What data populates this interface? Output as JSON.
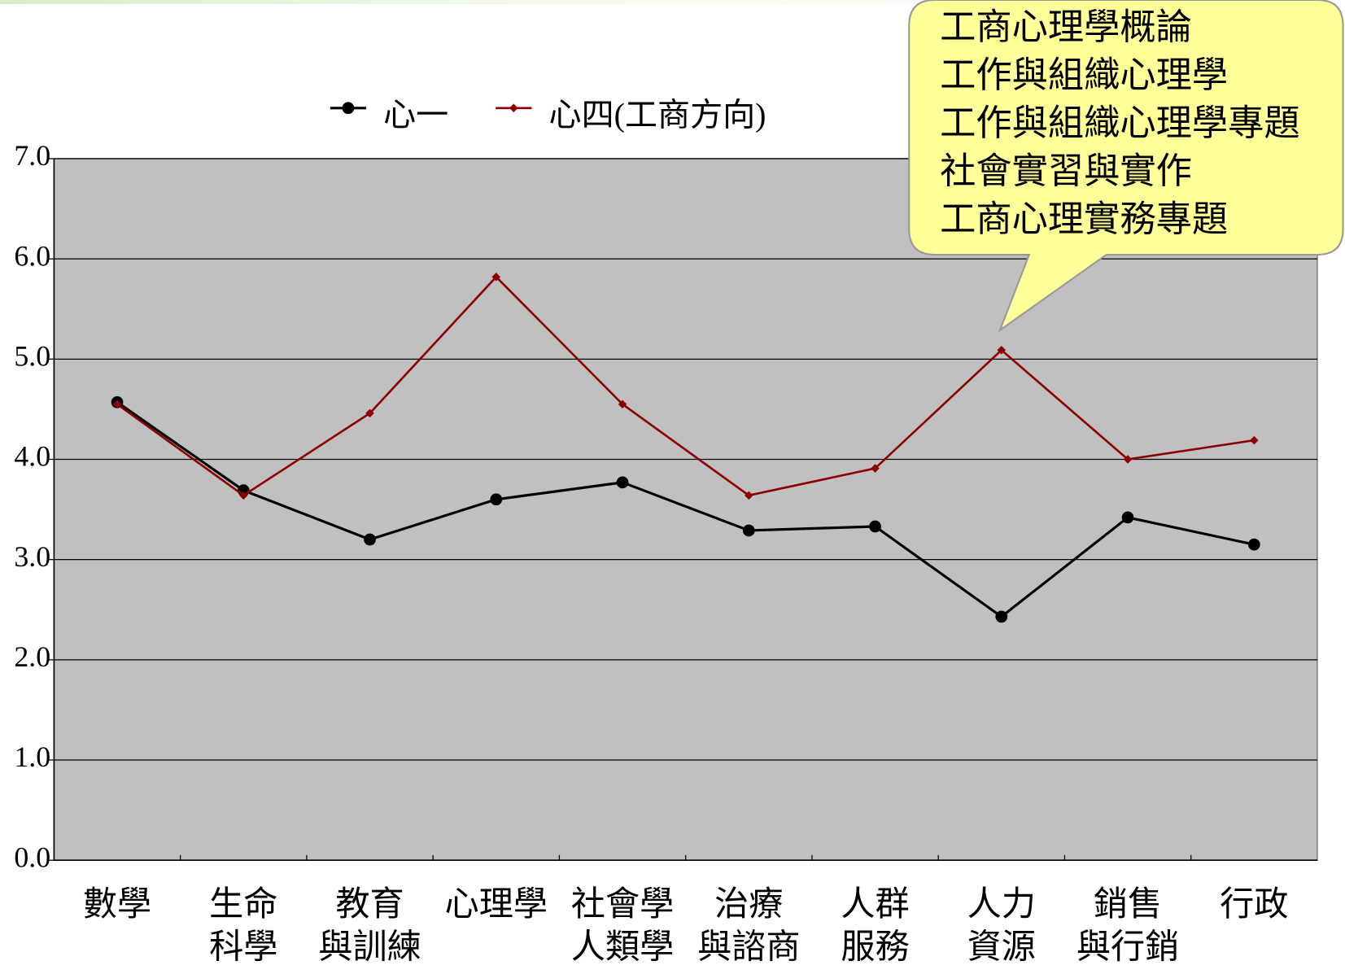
{
  "chart_data": {
    "type": "line",
    "categories": [
      [
        "數學"
      ],
      [
        "生命",
        "科學"
      ],
      [
        "教育",
        "與訓練"
      ],
      [
        "心理學"
      ],
      [
        "社會學",
        "人類學"
      ],
      [
        "治療",
        "與諮商"
      ],
      [
        "人群",
        "服務"
      ],
      [
        "人力",
        "資源"
      ],
      [
        "銷售",
        "與行銷"
      ],
      [
        "行政"
      ]
    ],
    "series": [
      {
        "name": "心一",
        "color": "#000000",
        "values": [
          4.57,
          3.69,
          3.2,
          3.6,
          3.77,
          3.29,
          3.33,
          2.43,
          3.42,
          3.15
        ]
      },
      {
        "name": "心四(工商方向)",
        "color": "#8b0000",
        "values": [
          4.55,
          3.64,
          4.46,
          5.82,
          4.55,
          3.64,
          3.91,
          5.09,
          4.0,
          4.19
        ]
      }
    ],
    "ylim": [
      0,
      7
    ],
    "yticks": [
      {
        "value": 0,
        "label": "0.0"
      },
      {
        "value": 1,
        "label": "1.0"
      },
      {
        "value": 2,
        "label": "2.0"
      },
      {
        "value": 3,
        "label": "3.0"
      },
      {
        "value": 4,
        "label": "4.0"
      },
      {
        "value": 5,
        "label": "5.0"
      },
      {
        "value": 6,
        "label": "6.0"
      },
      {
        "value": 7,
        "label": "7.0"
      }
    ],
    "grid": true,
    "legend": "top",
    "annotation": {
      "lines": [
        "工商心理學概論",
        "工作與組織心理學",
        "工作與組織心理學專題",
        "社會實習與實作",
        "工商心理實務專題"
      ]
    }
  }
}
